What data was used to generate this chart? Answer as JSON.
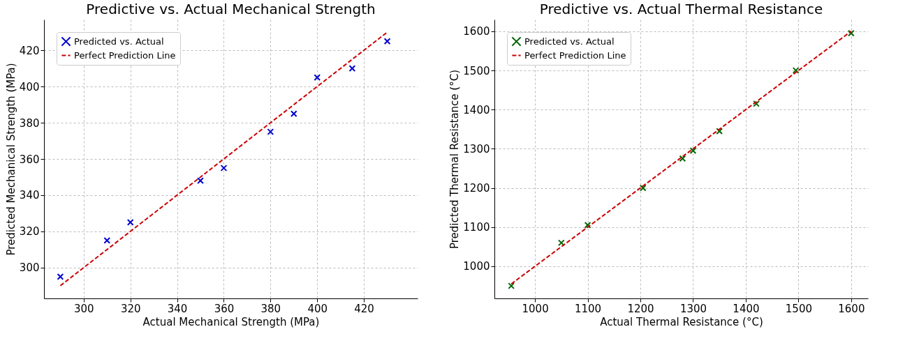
{
  "chart_data": [
    {
      "type": "scatter",
      "title": "Predictive vs. Actual Mechanical Strength",
      "xlabel": "Actual Mechanical Strength (MPa)",
      "ylabel": "Predicted Mechanical Strength (MPa)",
      "xlim": [
        283,
        443
      ],
      "ylim": [
        283,
        437
      ],
      "xticks": [
        300,
        320,
        340,
        360,
        380,
        400,
        420
      ],
      "yticks": [
        300,
        320,
        340,
        360,
        380,
        400,
        420
      ],
      "grid": true,
      "legend": "top left",
      "series": [
        {
          "name": "Predicted vs. Actual",
          "color": "#0000cc",
          "marker": "cross",
          "x": [
            290,
            310,
            320,
            350,
            360,
            380,
            390,
            400,
            415,
            430
          ],
          "values": [
            295,
            315,
            325,
            348,
            355,
            375,
            385,
            405,
            410,
            425
          ]
        },
        {
          "name": "Perfect Prediction Line",
          "color": "#cc0000",
          "type": "line",
          "line_style": "dashed",
          "x": [
            290,
            430
          ],
          "values": [
            290,
            430
          ]
        }
      ]
    },
    {
      "type": "scatter",
      "title": "Predictive vs. Actual Thermal Resistance",
      "xlabel": "Actual Thermal Resistance (°C)",
      "ylabel": "Predicted Thermal Resistance (°C)",
      "xlim": [
        923,
        1632
      ],
      "ylim": [
        918,
        1630
      ],
      "xticks": [
        1000,
        1100,
        1200,
        1300,
        1400,
        1500,
        1600
      ],
      "yticks": [
        1000,
        1100,
        1200,
        1300,
        1400,
        1500,
        1600
      ],
      "grid": true,
      "legend": "top left",
      "series": [
        {
          "name": "Predicted vs. Actual",
          "color": "#006400",
          "marker": "cross",
          "x": [
            955,
            1050,
            1100,
            1205,
            1280,
            1300,
            1350,
            1420,
            1495,
            1600
          ],
          "values": [
            950,
            1060,
            1105,
            1200,
            1275,
            1295,
            1345,
            1415,
            1500,
            1595
          ]
        },
        {
          "name": "Perfect Prediction Line",
          "color": "#cc0000",
          "type": "line",
          "line_style": "dashed",
          "x": [
            955,
            1600
          ],
          "values": [
            955,
            1600
          ]
        }
      ]
    }
  ]
}
